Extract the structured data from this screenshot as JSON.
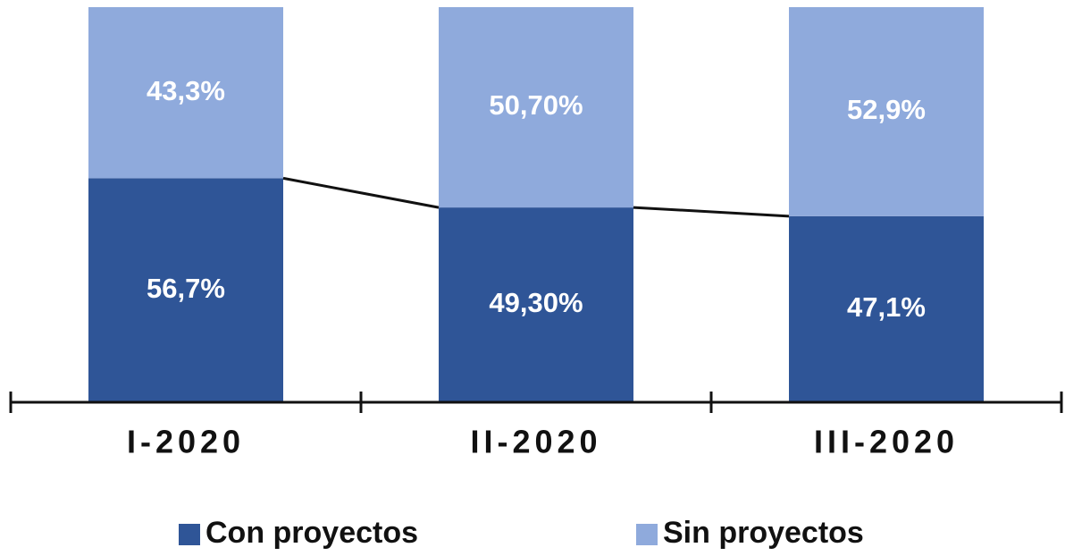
{
  "chart_data": {
    "type": "stacked_bar",
    "categories": [
      "I-2020",
      "II-2020",
      "III-2020"
    ],
    "series": [
      {
        "name": "Con proyectos",
        "color": "#2f5597",
        "values": [
          56.7,
          49.3,
          47.1
        ],
        "value_labels": [
          "56,7%",
          "49,30%",
          "47,1%"
        ]
      },
      {
        "name": "Sin proyectos",
        "color": "#8faadc",
        "values": [
          43.3,
          50.7,
          52.9
        ],
        "value_labels": [
          "43,3%",
          "50,70%",
          "52,9%"
        ]
      }
    ],
    "ylim": [
      0,
      100
    ]
  }
}
